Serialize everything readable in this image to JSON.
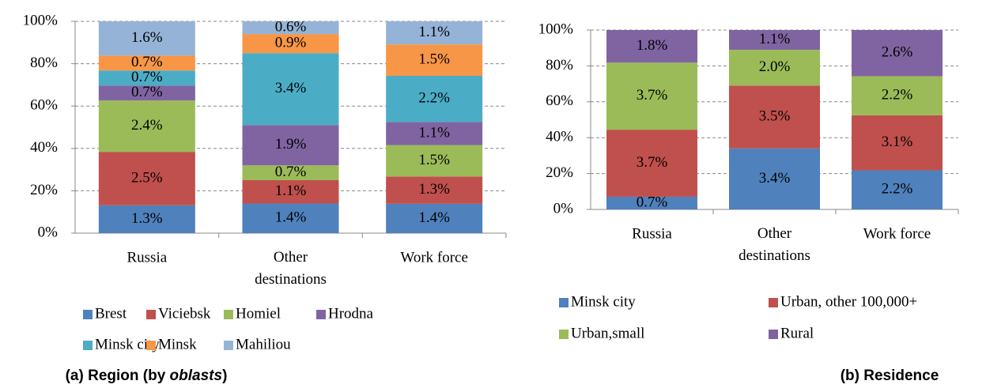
{
  "chart_data": [
    {
      "type": "bar",
      "stacking": "percent",
      "caption": [
        "(a) Region (by ",
        "oblasts",
        ")"
      ],
      "categories": [
        "Russia",
        "Other destinations",
        "Work force"
      ],
      "ylim": [
        0,
        100
      ],
      "yticks": [
        {
          "value": 0,
          "label": "0%"
        },
        {
          "value": 20,
          "label": "20%"
        },
        {
          "value": 40,
          "label": "40%"
        },
        {
          "value": 60,
          "label": "60%"
        },
        {
          "value": 80,
          "label": "80%"
        },
        {
          "value": 100,
          "label": "100%"
        }
      ],
      "grid": true,
      "series": [
        {
          "name": "Brest",
          "color": "#4f81bd",
          "values": [
            1.3,
            1.4,
            1.4
          ],
          "value_labels": [
            "1.3%",
            "1.4%",
            "1.4%"
          ]
        },
        {
          "name": "Viciebsk",
          "color": "#c0504d",
          "values": [
            2.5,
            1.1,
            1.3
          ],
          "value_labels": [
            "2.5%",
            "1.1%",
            "1.3%"
          ]
        },
        {
          "name": "Homiel",
          "color": "#9bbb59",
          "values": [
            2.4,
            0.7,
            1.5
          ],
          "value_labels": [
            "2.4%",
            "0.7%",
            "1.5%"
          ]
        },
        {
          "name": "Hrodna",
          "color": "#8064a2",
          "values": [
            0.7,
            1.9,
            1.1
          ],
          "value_labels": [
            "0.7%",
            "1.9%",
            "1.1%"
          ]
        },
        {
          "name": "Minsk city",
          "color": "#4bacc6",
          "values": [
            0.7,
            3.4,
            2.2
          ],
          "value_labels": [
            "0.7%",
            "3.4%",
            "2.2%"
          ]
        },
        {
          "name": "Minsk",
          "color": "#f79646",
          "values": [
            0.7,
            0.9,
            1.5
          ],
          "value_labels": [
            "0.7%",
            "0.9%",
            "1.5%"
          ]
        },
        {
          "name": "Mahiliou",
          "color": "#95b3d7",
          "values": [
            1.6,
            0.6,
            1.1
          ],
          "value_labels": [
            "1.6%",
            "0.6%",
            "1.1%"
          ]
        }
      ]
    },
    {
      "type": "bar",
      "stacking": "percent",
      "caption": [
        "(b) Residence"
      ],
      "categories": [
        "Russia",
        "Other destinations",
        "Work force"
      ],
      "ylim": [
        0,
        100
      ],
      "yticks": [
        {
          "value": 0,
          "label": "0%"
        },
        {
          "value": 20,
          "label": "20%"
        },
        {
          "value": 40,
          "label": "40%"
        },
        {
          "value": 60,
          "label": "60%"
        },
        {
          "value": 80,
          "label": "80%"
        },
        {
          "value": 100,
          "label": "100%"
        }
      ],
      "grid": true,
      "series": [
        {
          "name": "Minsk city",
          "color": "#4f81bd",
          "values": [
            0.7,
            3.4,
            2.2
          ],
          "value_labels": [
            "0.7%",
            "3.4%",
            "2.2%"
          ]
        },
        {
          "name": "Urban, other 100,000+",
          "color": "#c0504d",
          "values": [
            3.7,
            3.5,
            3.1
          ],
          "value_labels": [
            "3.7%",
            "3.5%",
            "3.1%"
          ]
        },
        {
          "name": "Urban,small",
          "color": "#9bbb59",
          "values": [
            3.7,
            2.0,
            2.2
          ],
          "value_labels": [
            "3.7%",
            "2.0%",
            "2.2%"
          ]
        },
        {
          "name": "Rural",
          "color": "#8064a2",
          "values": [
            1.8,
            1.1,
            2.6
          ],
          "value_labels": [
            "1.8%",
            "1.1%",
            "2.6%"
          ]
        }
      ]
    }
  ]
}
